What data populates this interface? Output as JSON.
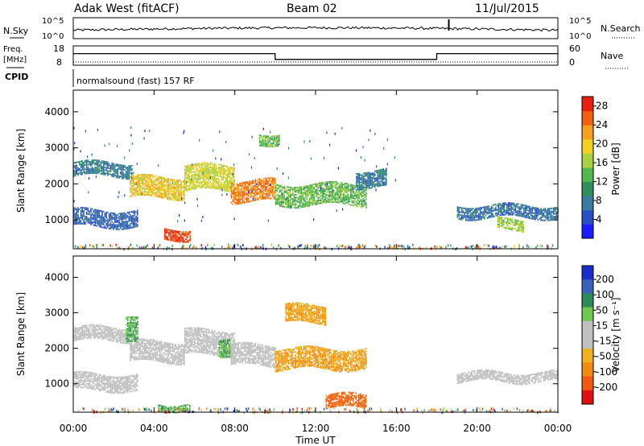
{
  "header": {
    "station": "Adak West (fitACF)",
    "beam": "Beam 02",
    "date": "11/Jul/2015"
  },
  "top_panels": {
    "nsky_label": "N.Sky",
    "nsky_ticks": [
      "10^5",
      "10^0"
    ],
    "nsearch_label": "N.Search",
    "nsearch_ticks": [
      "10^5",
      "10^0"
    ],
    "freq_label": "Freq.",
    "freq_unit": "[MHz]",
    "freq_ticks": [
      "18",
      "8"
    ],
    "nave_label": "Nave",
    "nave_ticks": [
      "60",
      "0"
    ],
    "cpid_label": "CPID",
    "cpid_value": "normalsound (fast) 157 RF"
  },
  "colors": {
    "power_scale": [
      "#1b1bff",
      "#2a4ec8",
      "#3b7ba0",
      "#2f8f5a",
      "#50b850",
      "#a8d040",
      "#f0d020",
      "#f5a020",
      "#f06010",
      "#e82010"
    ],
    "velocity_scale": [
      "#1b2cc8",
      "#3b62b8",
      "#2e8a58",
      "#70c850",
      "#c0c0c0",
      "#c0c0c0",
      "#f0b020",
      "#f08a10",
      "#f05a10",
      "#e01010"
    ]
  },
  "chart_data": [
    {
      "type": "line",
      "title": "",
      "series": [
        {
          "name": "N.Sky",
          "description_values": "noise level on log scale 10^0 to 10^5"
        },
        {
          "name": "N.Search"
        }
      ],
      "x": [
        "00:00",
        "04:00",
        "08:00",
        "12:00",
        "16:00",
        "20:00",
        "00:00"
      ],
      "ylim_log": [
        0,
        5
      ]
    },
    {
      "type": "line",
      "series": [
        {
          "name": "Freq.",
          "unit": "MHz",
          "x_hours": [
            0,
            10,
            10,
            18,
            18,
            24
          ],
          "values": [
            14,
            14,
            11,
            11,
            14,
            14
          ]
        },
        {
          "name": "Nave",
          "x_hours": [
            0,
            24
          ],
          "values": [
            10,
            10
          ]
        }
      ],
      "ylim_freq": [
        8,
        18
      ],
      "ylim_nave": [
        0,
        60
      ]
    },
    {
      "type": "heatmap",
      "ylabel": "Slant Range [km]",
      "yticks": [
        1000,
        2000,
        3000,
        4000
      ],
      "ylim": [
        200,
        4600
      ],
      "colorbar_label": "Power [dB]",
      "colorbar_ticks": [
        4,
        8,
        12,
        16,
        20,
        24,
        28
      ],
      "colorbar_range": [
        0,
        30
      ],
      "bands": [
        {
          "h0": 0.0,
          "h1": 2.9,
          "r0": 2200,
          "r1": 2600,
          "level": 8
        },
        {
          "h0": 0.0,
          "h1": 3.2,
          "r0": 800,
          "r1": 1250,
          "level": 6
        },
        {
          "h0": 2.8,
          "h1": 5.5,
          "r0": 1600,
          "r1": 2200,
          "level": 20
        },
        {
          "h0": 5.5,
          "h1": 8.0,
          "r0": 1800,
          "r1": 2500,
          "level": 18
        },
        {
          "h0": 7.8,
          "h1": 10.0,
          "r0": 1500,
          "r1": 2100,
          "level": 24
        },
        {
          "h0": 10.0,
          "h1": 14.5,
          "r0": 1400,
          "r1": 2000,
          "level": 14
        },
        {
          "h0": 14.0,
          "h1": 15.5,
          "r0": 1900,
          "r1": 2350,
          "level": 8
        },
        {
          "h0": 9.2,
          "h1": 10.2,
          "r0": 3100,
          "r1": 3400,
          "level": 14
        },
        {
          "h0": 4.5,
          "h1": 5.8,
          "r0": 450,
          "r1": 750,
          "level": 27
        },
        {
          "h0": 19.0,
          "h1": 24.0,
          "r0": 1050,
          "r1": 1400,
          "level": 7
        },
        {
          "h0": 21.0,
          "h1": 22.3,
          "r0": 700,
          "r1": 1000,
          "level": 16
        }
      ]
    },
    {
      "type": "heatmap",
      "ylabel": "Slant Range [km]",
      "xlabel": "Time UT",
      "x": [
        "00:00",
        "04:00",
        "08:00",
        "12:00",
        "16:00",
        "20:00",
        "00:00"
      ],
      "yticks": [
        1000,
        2000,
        3000,
        4000
      ],
      "ylim": [
        200,
        4600
      ],
      "colorbar_label": "Velocity [m s^-1]",
      "colorbar_ticks": [
        200,
        100,
        50,
        15,
        -15,
        -50,
        -100,
        -200
      ],
      "bands": [
        {
          "h0": 0.0,
          "h1": 2.9,
          "r0": 2200,
          "r1": 2600,
          "v": 0
        },
        {
          "h0": 0.0,
          "h1": 3.2,
          "r0": 800,
          "r1": 1250,
          "v": 0
        },
        {
          "h0": 2.8,
          "h1": 5.5,
          "r0": 1600,
          "r1": 2200,
          "v": 0
        },
        {
          "h0": 2.6,
          "h1": 3.2,
          "r0": 2100,
          "r1": 2800,
          "v": 30
        },
        {
          "h0": 5.5,
          "h1": 8.0,
          "r0": 1800,
          "r1": 2500,
          "v": 0
        },
        {
          "h0": 7.2,
          "h1": 7.8,
          "r0": 1800,
          "r1": 2300,
          "v": 30
        },
        {
          "h0": 7.8,
          "h1": 10.0,
          "r0": 1500,
          "r1": 2100,
          "v": 0
        },
        {
          "h0": 10.0,
          "h1": 14.5,
          "r0": 1400,
          "r1": 2000,
          "v": -30
        },
        {
          "h0": 10.5,
          "h1": 12.5,
          "r0": 2700,
          "r1": 3200,
          "v": -30
        },
        {
          "h0": 4.2,
          "h1": 5.8,
          "r0": 250,
          "r1": 450,
          "v": 30
        },
        {
          "h0": 12.5,
          "h1": 14.5,
          "r0": 300,
          "r1": 700,
          "v": -80
        },
        {
          "h0": 19.0,
          "h1": 24.0,
          "r0": 1050,
          "r1": 1300,
          "v": 0
        }
      ]
    }
  ],
  "axes": {
    "time_ticks": [
      "00:00",
      "04:00",
      "08:00",
      "12:00",
      "16:00",
      "20:00",
      "00:00"
    ],
    "xlabel": "Time UT",
    "range_ticks": [
      "1000",
      "2000",
      "3000",
      "4000"
    ],
    "ylabel": "Slant Range [km]",
    "power_ticks": [
      "28",
      "24",
      "20",
      "16",
      "12",
      "8",
      "4"
    ],
    "power_label": "Power [dB]",
    "vel_ticks": [
      "200",
      "100",
      "50",
      "15",
      "-15",
      "-50",
      "-100",
      "-200"
    ],
    "vel_label": "Velocity [m s⁻¹]"
  }
}
